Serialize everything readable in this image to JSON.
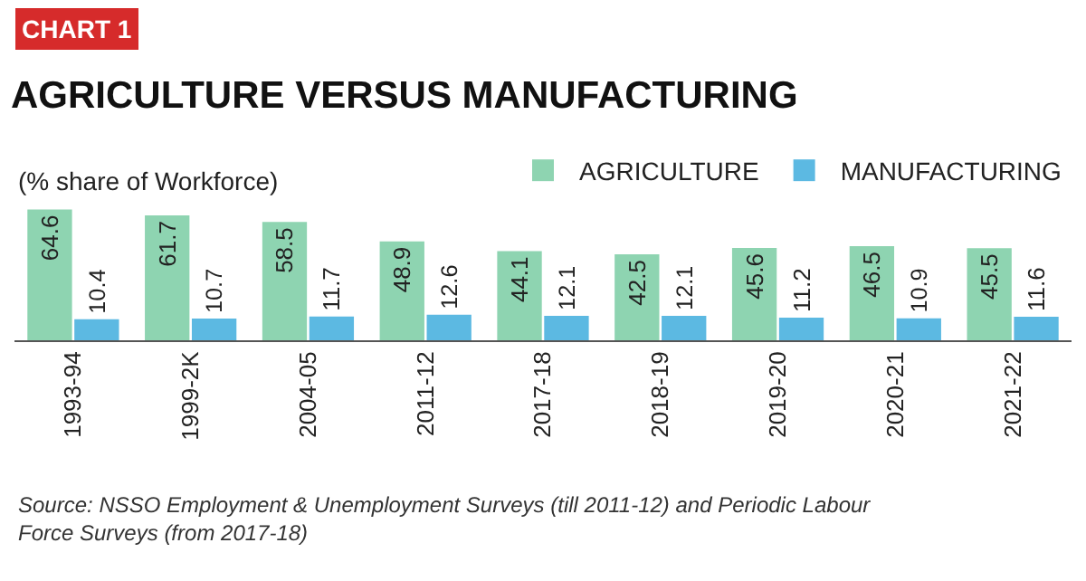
{
  "chart_data": {
    "type": "bar",
    "title": "AGRICULTURE VERSUS MANUFACTURING",
    "subtitle": "(% share of Workforce)",
    "categories": [
      "1993-94",
      "1999-2K",
      "2004-05",
      "2011-12",
      "2017-18",
      "2018-19",
      "2019-20",
      "2020-21",
      "2021-22"
    ],
    "series": [
      {
        "name": "AGRICULTURE",
        "color": "#8ed4b1",
        "values": [
          64.6,
          61.7,
          58.5,
          48.9,
          44.1,
          42.5,
          45.6,
          46.5,
          45.5
        ]
      },
      {
        "name": "MANUFACTURING",
        "color": "#5cb9e2",
        "values": [
          10.4,
          10.7,
          11.7,
          12.6,
          12.1,
          12.1,
          11.2,
          10.9,
          11.6
        ]
      }
    ],
    "data_labels": true,
    "legend": "top right",
    "annotations": [
      "CHART 1",
      "Source: NSSO Employment & Unemployment Surveys (till 2011-12) and Periodic Labour Force Surveys (from 2017-18)"
    ]
  }
}
